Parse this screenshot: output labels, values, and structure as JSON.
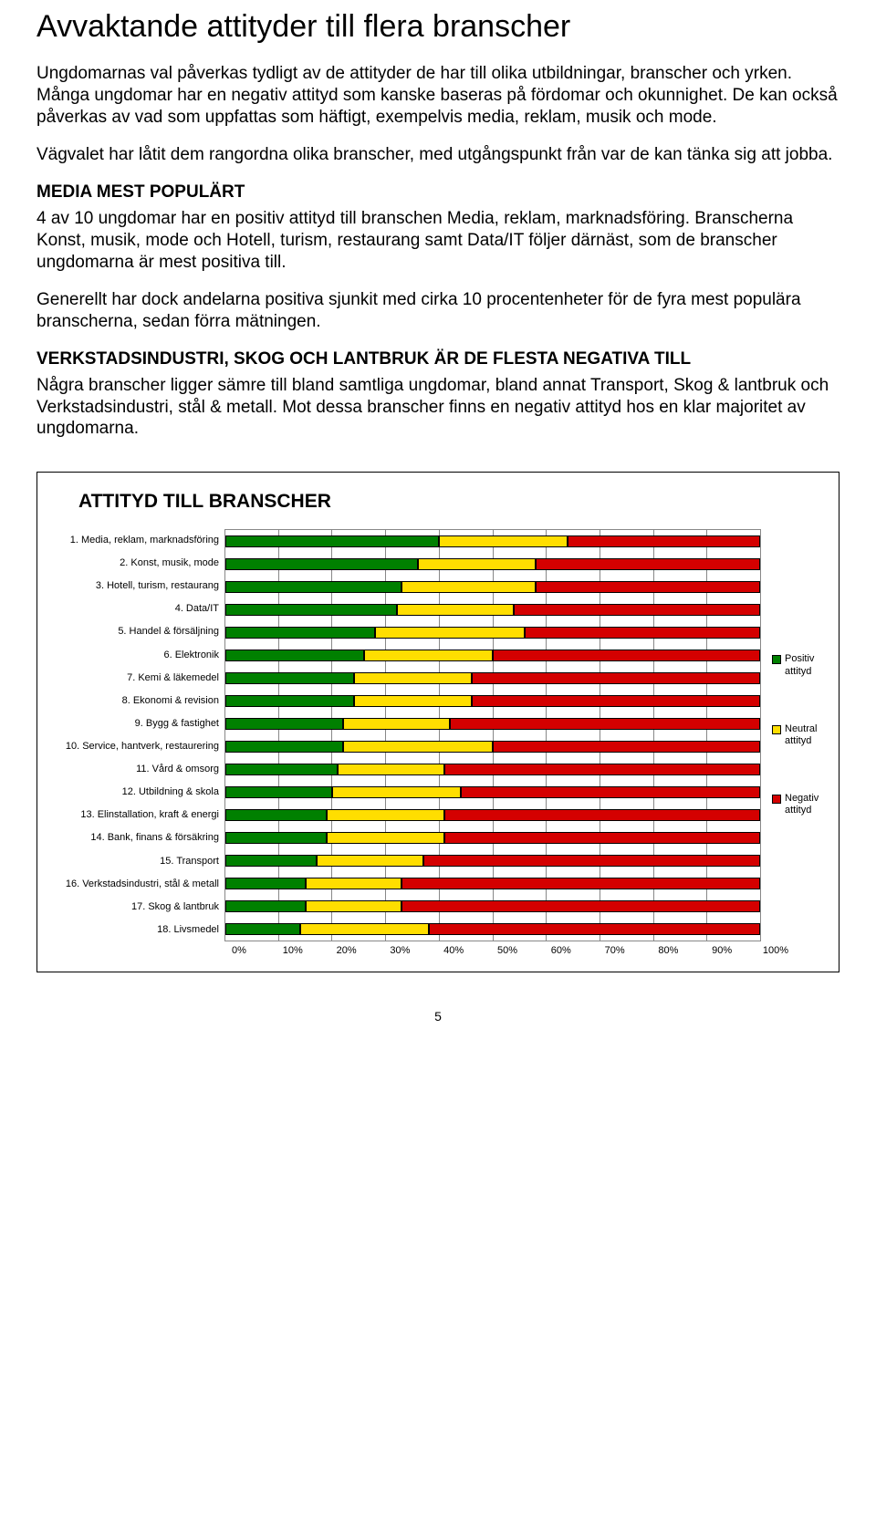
{
  "title": "Avvaktande attityder till flera branscher",
  "para1": "Ungdomarnas val påverkas tydligt av de attityder de har till olika utbildningar, branscher och yrken. Många ungdomar har en negativ attityd som kanske baseras på fördomar och okunnighet. De kan också påverkas av vad som uppfattas som häftigt, exempelvis media, reklam, musik och mode.",
  "para2": "Vägvalet har låtit dem rangordna olika branscher, med utgångspunkt från var de kan tänka sig att jobba.",
  "h2a": "MEDIA MEST POPULÄRT",
  "para3": "4 av 10 ungdomar har en positiv attityd till branschen Media, reklam, marknadsföring. Branscherna Konst, musik, mode och Hotell, turism, restaurang samt Data/IT följer därnäst, som de branscher ungdomarna är mest positiva till.",
  "para4": "Generellt har dock andelarna positiva sjunkit med cirka 10 procentenheter för de fyra mest populära branscherna, sedan förra mätningen.",
  "h2b": "VERKSTADSINDUSTRI, SKOG OCH LANTBRUK ÄR DE FLESTA NEGATIVA TILL",
  "para5": "Några branscher ligger sämre till bland samtliga ungdomar, bland annat Transport, Skog & lantbruk och Verkstadsindustri, stål & metall. Mot dessa branscher finns en negativ attityd hos en klar majoritet av ungdomarna.",
  "chart": {
    "title": "ATTITYD TILL BRANSCHER",
    "colors": {
      "positive": "#008000",
      "neutral": "#ffde00",
      "negative": "#d40000"
    },
    "legend": {
      "positive": "Positiv attityd",
      "neutral": "Neutral attityd",
      "negative": "Negativ attityd"
    },
    "xticks": [
      "0%",
      "10%",
      "20%",
      "30%",
      "40%",
      "50%",
      "60%",
      "70%",
      "80%",
      "90%",
      "100%"
    ],
    "rows": [
      {
        "label": "1. Media, reklam, marknadsföring",
        "pos": 40,
        "neu": 24,
        "neg": 36
      },
      {
        "label": "2. Konst, musik, mode",
        "pos": 36,
        "neu": 22,
        "neg": 42
      },
      {
        "label": "3. Hotell, turism, restaurang",
        "pos": 33,
        "neu": 25,
        "neg": 42
      },
      {
        "label": "4. Data/IT",
        "pos": 32,
        "neu": 22,
        "neg": 46
      },
      {
        "label": "5. Handel & försäljning",
        "pos": 28,
        "neu": 28,
        "neg": 44
      },
      {
        "label": "6. Elektronik",
        "pos": 26,
        "neu": 24,
        "neg": 50
      },
      {
        "label": "7. Kemi & läkemedel",
        "pos": 24,
        "neu": 22,
        "neg": 54
      },
      {
        "label": "8. Ekonomi & revision",
        "pos": 24,
        "neu": 22,
        "neg": 54
      },
      {
        "label": "9. Bygg & fastighet",
        "pos": 22,
        "neu": 20,
        "neg": 58
      },
      {
        "label": "10. Service, hantverk, restaurering",
        "pos": 22,
        "neu": 28,
        "neg": 50
      },
      {
        "label": "11. Vård & omsorg",
        "pos": 21,
        "neu": 20,
        "neg": 59
      },
      {
        "label": "12. Utbildning & skola",
        "pos": 20,
        "neu": 24,
        "neg": 56
      },
      {
        "label": "13. Elinstallation, kraft & energi",
        "pos": 19,
        "neu": 22,
        "neg": 59
      },
      {
        "label": "14. Bank, finans & försäkring",
        "pos": 19,
        "neu": 22,
        "neg": 59
      },
      {
        "label": "15. Transport",
        "pos": 17,
        "neu": 20,
        "neg": 63
      },
      {
        "label": "16. Verkstadsindustri, stål & metall",
        "pos": 15,
        "neu": 18,
        "neg": 67
      },
      {
        "label": "17. Skog & lantbruk",
        "pos": 15,
        "neu": 18,
        "neg": 67
      },
      {
        "label": "18. Livsmedel",
        "pos": 14,
        "neu": 24,
        "neg": 62
      }
    ]
  },
  "pagenum": "5"
}
